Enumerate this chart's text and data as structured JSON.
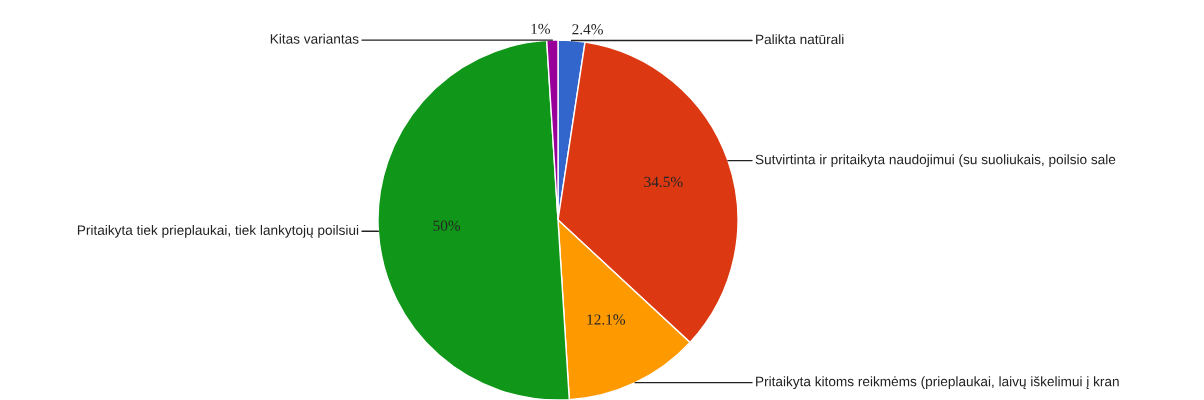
{
  "chart_data": {
    "type": "pie",
    "categories": [
      "Palikta natūrali",
      "Sutvirtinta ir pritaikyta naudojimui (su suoliukais, poilsio sale",
      "Pritaikyta kitoms reikmėms (prieplaukai, laivų iškelimui į kran",
      "Pritaikyta tiek prieplaukai, tiek lankytojų poilsiui",
      "Kitas variantas"
    ],
    "values": [
      2.4,
      34.5,
      12.1,
      50,
      1
    ],
    "value_labels": [
      "2.4%",
      "34.5%",
      "12.1%",
      "50%",
      "1%"
    ],
    "colors": [
      "#3366cc",
      "#dc3912",
      "#ff9900",
      "#109618",
      "#990099"
    ]
  }
}
